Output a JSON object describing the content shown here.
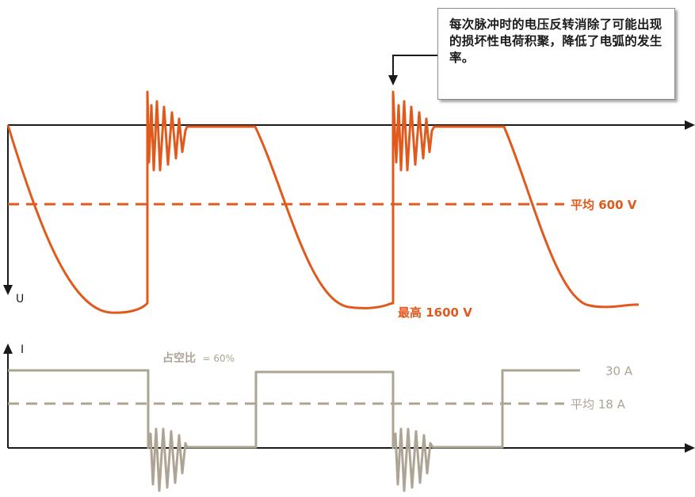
{
  "callout": {
    "text": "每次脉冲时的电压反转消除了可能出现的损坏性电荷积聚，降低了电弧的发生率。"
  },
  "voltage_chart": {
    "axis_label": "U",
    "avg_label": "平均 600 V",
    "peak_label": "最高 1600 V",
    "color": "#e05a1e"
  },
  "current_chart": {
    "axis_label": "I",
    "duty_label": "占空比",
    "duty_value": "= 60%",
    "level_label": "30 A",
    "avg_label": "平均 18 A",
    "color": "#aea494"
  },
  "colors": {
    "axis": "#1a1a1a",
    "voltage": "#e05a1e",
    "current": "#aea494"
  }
}
